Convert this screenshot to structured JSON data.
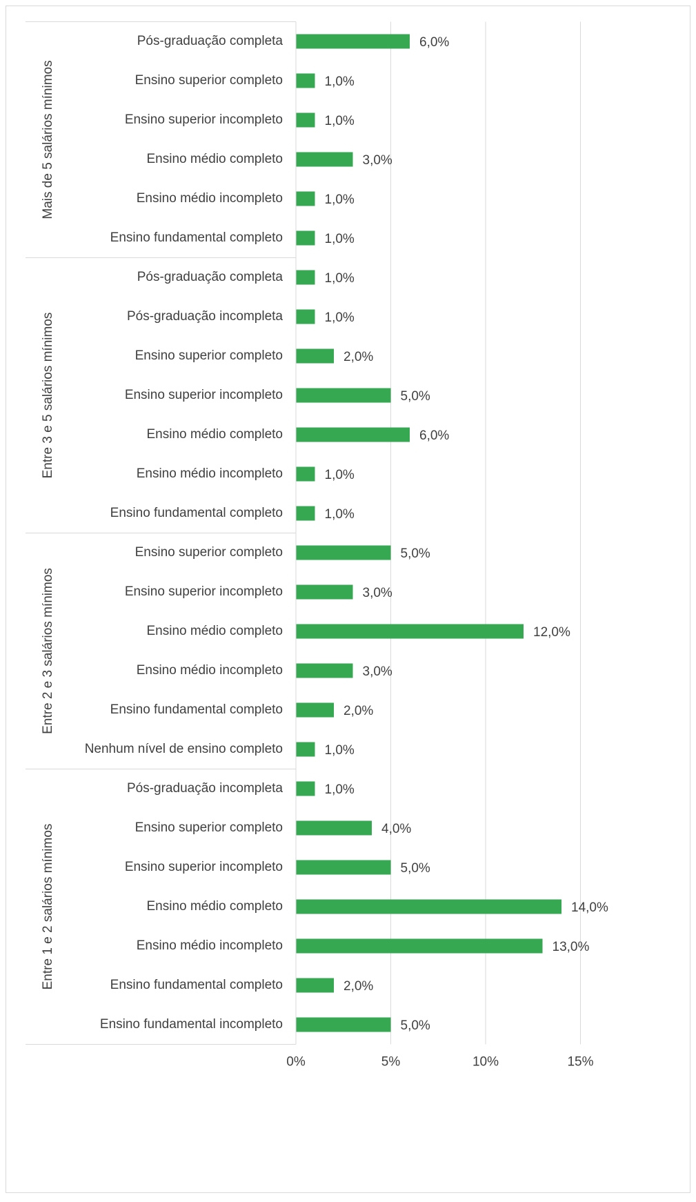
{
  "chart_data": {
    "type": "grouped-hbar",
    "color": "#36a852",
    "grid": true,
    "xlim": [
      0,
      15
    ],
    "xticks": [
      {
        "value": 0,
        "label": "0%"
      },
      {
        "value": 5,
        "label": "5%"
      },
      {
        "value": 10,
        "label": "10%"
      },
      {
        "value": 15,
        "label": "15%"
      }
    ],
    "groups": [
      {
        "name": "Mais de 5 salários mínimos",
        "categories": [
          "Pós-graduação completa",
          "Ensino superior completo",
          "Ensino superior incompleto",
          "Ensino médio completo",
          "Ensino médio incompleto",
          "Ensino fundamental completo"
        ],
        "values": [
          6,
          1,
          1,
          3,
          1,
          1
        ],
        "value_labels": [
          "6,0%",
          "1,0%",
          "1,0%",
          "3,0%",
          "1,0%",
          "1,0%"
        ]
      },
      {
        "name": "Entre 3 e 5 salários mínimos",
        "categories": [
          "Pós-graduação completa",
          "Pós-graduação incompleta",
          "Ensino superior completo",
          "Ensino superior incompleto",
          "Ensino médio completo",
          "Ensino médio incompleto",
          "Ensino fundamental completo"
        ],
        "values": [
          1,
          1,
          2,
          5,
          6,
          1,
          1
        ],
        "value_labels": [
          "1,0%",
          "1,0%",
          "2,0%",
          "5,0%",
          "6,0%",
          "1,0%",
          "1,0%"
        ]
      },
      {
        "name": "Entre 2 e 3 salários mínimos",
        "categories": [
          "Ensino superior completo",
          "Ensino superior incompleto",
          "Ensino médio completo",
          "Ensino médio incompleto",
          "Ensino fundamental completo",
          "Nenhum nível de ensino completo"
        ],
        "values": [
          5,
          3,
          12,
          3,
          2,
          1
        ],
        "value_labels": [
          "5,0%",
          "3,0%",
          "12,0%",
          "3,0%",
          "2,0%",
          "1,0%"
        ]
      },
      {
        "name": "Entre 1 e 2 salários mínimos",
        "categories": [
          "Pós-graduação incompleta",
          "Ensino superior completo",
          "Ensino superior incompleto",
          "Ensino médio completo",
          "Ensino médio incompleto",
          "Ensino fundamental completo",
          "Ensino fundamental incompleto"
        ],
        "values": [
          1,
          4,
          5,
          14,
          13,
          2,
          5
        ],
        "value_labels": [
          "1,0%",
          "4,0%",
          "5,0%",
          "14,0%",
          "13,0%",
          "2,0%",
          "5,0%"
        ]
      }
    ]
  }
}
